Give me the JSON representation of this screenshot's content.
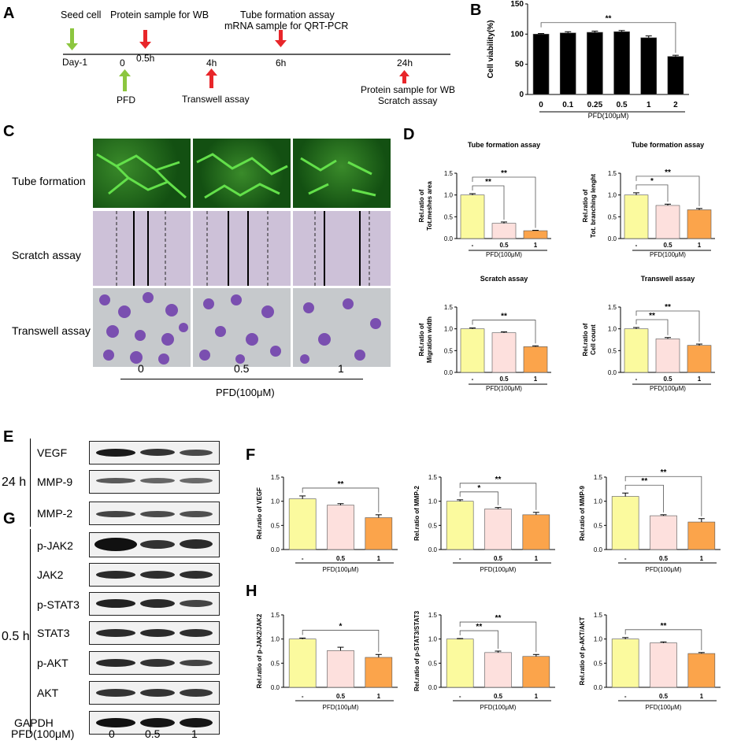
{
  "panels": {
    "A": "A",
    "B": "B",
    "C": "C",
    "D": "D",
    "E": "E",
    "F": "F",
    "G": "G",
    "H": "H"
  },
  "timeline": {
    "events": [
      {
        "text": "Seed cell"
      },
      {
        "text": "Day-1"
      },
      {
        "text": "0"
      },
      {
        "text": "PFD"
      },
      {
        "text": "Protein sample for WB"
      },
      {
        "text": "0.5h"
      },
      {
        "text": "4h"
      },
      {
        "text": "Transwell assay"
      },
      {
        "text": "Tube formation assay"
      },
      {
        "text": "mRNA sample for QRT-PCR"
      },
      {
        "text": "6h"
      },
      {
        "text": "24h"
      },
      {
        "text": "Protein sample for WB"
      },
      {
        "text": "Scratch assay"
      }
    ],
    "colors": {
      "green": "#8cc63f",
      "red": "#e8262a"
    }
  },
  "microscopy": {
    "rows": [
      "Tube formation",
      "Scratch assay",
      "Transwell assay"
    ],
    "doses": [
      "0",
      "0.5",
      "1"
    ],
    "xlabel": "PFD(100μM)"
  },
  "blots": {
    "e_group": "24 h",
    "g_group": "0.5 h",
    "e_rows": [
      "VEGF",
      "MMP-9",
      "MMP-2"
    ],
    "g_rows": [
      "p-JAK2",
      "JAK2",
      "p-STAT3",
      "STAT3",
      "p-AKT",
      "AKT",
      "GAPDH"
    ],
    "footer_label": "PFD(100μM)",
    "doses": [
      "0",
      "0.5",
      "1"
    ]
  },
  "chart_data": [
    {
      "id": "B",
      "type": "bar",
      "categories": [
        "0",
        "0.1",
        "0.25",
        "0.5",
        "1",
        "2"
      ],
      "values": [
        100,
        102,
        103,
        104,
        94,
        63
      ],
      "errors": [
        1,
        2,
        2,
        2,
        3,
        2
      ],
      "ylabel": "Cell viability(%)",
      "xlabel": "PFD(100μM)",
      "ylim": [
        0,
        150
      ],
      "yticks": [
        0,
        50,
        100,
        150
      ],
      "sig": [
        {
          "from": 0,
          "to": 5,
          "label": "**"
        }
      ],
      "colors": [
        "#000000"
      ]
    },
    {
      "id": "D1",
      "type": "bar",
      "title": "Tube formation assay",
      "categories": [
        "-",
        "0.5",
        "1"
      ],
      "values": [
        1.0,
        0.35,
        0.18
      ],
      "errors": [
        0.03,
        0.03,
        0.01
      ],
      "ylabel": "Rel.ratio of Tot.meshes area",
      "xlabel": "PFD(100μM)",
      "ylim": [
        0,
        1.5
      ],
      "yticks": [
        0.0,
        0.5,
        1.0,
        1.5
      ],
      "sig": [
        {
          "from": 0,
          "to": 1,
          "label": "**"
        },
        {
          "from": 0,
          "to": 2,
          "label": "**"
        }
      ],
      "colors": [
        "#fbfa9e",
        "#fde0dd",
        "#fba44b"
      ]
    },
    {
      "id": "D2",
      "type": "bar",
      "title": "Tube formation assay",
      "categories": [
        "-",
        "0.5",
        "1"
      ],
      "values": [
        1.0,
        0.76,
        0.66
      ],
      "errors": [
        0.05,
        0.03,
        0.03
      ],
      "ylabel": "Rel.ratio of Tot. branching lenght",
      "xlabel": "PFD(100μM)",
      "ylim": [
        0,
        1.5
      ],
      "yticks": [
        0.0,
        0.5,
        1.0,
        1.5
      ],
      "sig": [
        {
          "from": 0,
          "to": 1,
          "label": "*"
        },
        {
          "from": 0,
          "to": 2,
          "label": "**"
        }
      ],
      "colors": [
        "#fbfa9e",
        "#fde0dd",
        "#fba44b"
      ]
    },
    {
      "id": "D3",
      "type": "bar",
      "title": "Scratch assay",
      "categories": [
        "-",
        "0.5",
        "1"
      ],
      "values": [
        1.0,
        0.91,
        0.59
      ],
      "errors": [
        0.02,
        0.02,
        0.02
      ],
      "ylabel": "Rel.ratio of Migration width",
      "xlabel": "PFD(100μM)",
      "ylim": [
        0,
        1.5
      ],
      "yticks": [
        0.0,
        0.5,
        1.0,
        1.5
      ],
      "sig": [
        {
          "from": 0,
          "to": 2,
          "label": "**"
        }
      ],
      "colors": [
        "#fbfa9e",
        "#fde0dd",
        "#fba44b"
      ]
    },
    {
      "id": "D4",
      "type": "bar",
      "title": "Transwell assay",
      "categories": [
        "-",
        "0.5",
        "1"
      ],
      "values": [
        1.0,
        0.77,
        0.62
      ],
      "errors": [
        0.03,
        0.03,
        0.03
      ],
      "ylabel": "Rel.ratio of Cell count",
      "xlabel": "PFD(100μM)",
      "ylim": [
        0,
        1.5
      ],
      "yticks": [
        0.0,
        0.5,
        1.0,
        1.5
      ],
      "sig": [
        {
          "from": 0,
          "to": 1,
          "label": "**"
        },
        {
          "from": 0,
          "to": 2,
          "label": "**"
        }
      ],
      "colors": [
        "#fbfa9e",
        "#fde0dd",
        "#fba44b"
      ]
    },
    {
      "id": "F1",
      "type": "bar",
      "categories": [
        "-",
        "0.5",
        "1"
      ],
      "values": [
        1.05,
        0.92,
        0.66
      ],
      "errors": [
        0.06,
        0.03,
        0.06
      ],
      "ylabel": "Rel.ratio of VEGF",
      "xlabel": "PFD(100μM)",
      "ylim": [
        0,
        1.5
      ],
      "yticks": [
        0.0,
        0.5,
        1.0,
        1.5
      ],
      "ytickfmt": 1,
      "sig": [
        {
          "from": 0,
          "to": 2,
          "label": "**"
        }
      ],
      "colors": [
        "#fbfa9e",
        "#fde0dd",
        "#fba44b"
      ]
    },
    {
      "id": "F2",
      "type": "bar",
      "categories": [
        "-",
        "0.5",
        "1"
      ],
      "values": [
        1.0,
        0.84,
        0.72
      ],
      "errors": [
        0.03,
        0.03,
        0.05
      ],
      "ylabel": "Rel.ratio of MMP-2",
      "xlabel": "PFD(100μM)",
      "ylim": [
        0,
        1.5
      ],
      "yticks": [
        0.0,
        0.5,
        1.0,
        1.5
      ],
      "ytickfmt": 1,
      "sig": [
        {
          "from": 0,
          "to": 1,
          "label": "*"
        },
        {
          "from": 0,
          "to": 2,
          "label": "**"
        }
      ],
      "colors": [
        "#fbfa9e",
        "#fde0dd",
        "#fba44b"
      ]
    },
    {
      "id": "F3",
      "type": "bar",
      "categories": [
        "-",
        "0.5",
        "1"
      ],
      "values": [
        1.1,
        0.7,
        0.57
      ],
      "errors": [
        0.07,
        0.02,
        0.07
      ],
      "ylabel": "Rel.ratio of MMP-9",
      "xlabel": "PFD(100μM)",
      "ylim": [
        0,
        1.5
      ],
      "yticks": [
        0.0,
        0.5,
        1.0,
        1.5
      ],
      "ytickfmt": 1,
      "sig": [
        {
          "from": 0,
          "to": 1,
          "label": "**"
        },
        {
          "from": 0,
          "to": 2,
          "label": "**"
        }
      ],
      "colors": [
        "#fbfa9e",
        "#fde0dd",
        "#fba44b"
      ]
    },
    {
      "id": "H1",
      "type": "bar",
      "categories": [
        "-",
        "0.5",
        "1"
      ],
      "values": [
        1.0,
        0.76,
        0.62
      ],
      "errors": [
        0.02,
        0.07,
        0.06
      ],
      "ylabel": "Rel.ratio of p-JAK2/JAK2",
      "xlabel": "PFD(100μM)",
      "ylim": [
        0,
        1.5
      ],
      "yticks": [
        0.0,
        0.5,
        1.0,
        1.5
      ],
      "ytickfmt": 1,
      "sig": [
        {
          "from": 0,
          "to": 2,
          "label": "*"
        }
      ],
      "colors": [
        "#fbfa9e",
        "#fde0dd",
        "#fba44b"
      ]
    },
    {
      "id": "H2",
      "type": "bar",
      "categories": [
        "-",
        "0.5",
        "1"
      ],
      "values": [
        1.0,
        0.72,
        0.64
      ],
      "errors": [
        0.01,
        0.03,
        0.04
      ],
      "ylabel": "Rel.ratio of p-STAT3/STAT3",
      "xlabel": "PFD(100μM)",
      "ylim": [
        0,
        1.5
      ],
      "yticks": [
        0.0,
        0.5,
        1.0,
        1.5
      ],
      "ytickfmt": 1,
      "sig": [
        {
          "from": 0,
          "to": 1,
          "label": "**"
        },
        {
          "from": 0,
          "to": 2,
          "label": "**"
        }
      ],
      "colors": [
        "#fbfa9e",
        "#fde0dd",
        "#fba44b"
      ]
    },
    {
      "id": "H3",
      "type": "bar",
      "categories": [
        "-",
        "0.5",
        "1"
      ],
      "values": [
        1.0,
        0.92,
        0.7
      ],
      "errors": [
        0.03,
        0.02,
        0.02
      ],
      "ylabel": "Rel.ratio of p-AKT/AKT",
      "xlabel": "PFD(100μM)",
      "ylim": [
        0,
        1.5
      ],
      "yticks": [
        0.0,
        0.5,
        1.0,
        1.5
      ],
      "ytickfmt": 1,
      "sig": [
        {
          "from": 0,
          "to": 2,
          "label": "**"
        }
      ],
      "colors": [
        "#fbfa9e",
        "#fde0dd",
        "#fba44b"
      ]
    }
  ]
}
